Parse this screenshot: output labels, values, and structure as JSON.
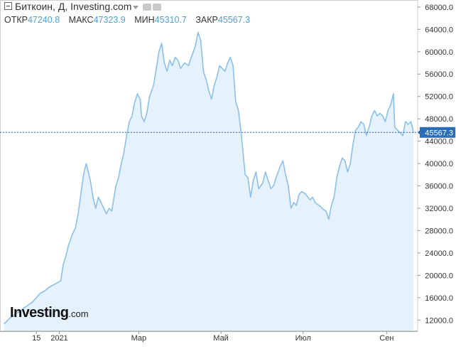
{
  "header": {
    "title": "Биткоин, Д, Investing.com",
    "open_label": "ОТКР",
    "open_value": "47240.8",
    "high_label": "МАКС",
    "high_value": "47323.9",
    "low_label": "МИН",
    "low_value": "45310.7",
    "close_label": "ЗАКР",
    "close_value": "45567.3"
  },
  "logo": {
    "brand": "Investing",
    "suffix": ".com"
  },
  "colors": {
    "line": "#8cc0e8",
    "fill": "#e5f2fb",
    "current_badge": "#2a6db5",
    "current_line": "#2a63b0"
  },
  "chart_data": {
    "type": "area",
    "title": "Биткоин, Д, Investing.com",
    "xlabel": "",
    "ylabel": "",
    "ylim": [
      10000,
      69000
    ],
    "grid": false,
    "y_ticks": [
      "12000.0",
      "16000.0",
      "20000.0",
      "24000.0",
      "28000.0",
      "32000.0",
      "36000.0",
      "40000.0",
      "44000.0",
      "48000.0",
      "52000.0",
      "56000.0",
      "60000.0",
      "64000.0",
      "68000.0"
    ],
    "x_tick_labels": [
      {
        "label": "15",
        "date": "2020-12-15"
      },
      {
        "label": "2021",
        "date": "2021-01-01"
      },
      {
        "label": "Мар",
        "date": "2021-03-01"
      },
      {
        "label": "Май",
        "date": "2021-05-01"
      },
      {
        "label": "Июл",
        "date": "2021-07-01"
      },
      {
        "label": "Сен",
        "date": "2021-09-01"
      }
    ],
    "current_value": 45567.3,
    "current_label": "45567.3",
    "series": [
      {
        "values": [
          [
            "2020-11-21",
            11300
          ],
          [
            "2020-11-25",
            12300
          ],
          [
            "2020-11-28",
            12800
          ],
          [
            "2020-11-30",
            13200
          ],
          [
            "2020-12-03",
            13600
          ],
          [
            "2020-12-06",
            14200
          ],
          [
            "2020-12-09",
            14700
          ],
          [
            "2020-12-12",
            15200
          ],
          [
            "2020-12-15",
            16000
          ],
          [
            "2020-12-18",
            16800
          ],
          [
            "2020-12-21",
            17200
          ],
          [
            "2020-12-24",
            17800
          ],
          [
            "2020-12-27",
            18200
          ],
          [
            "2020-12-30",
            18600
          ],
          [
            "2021-01-02",
            19000
          ],
          [
            "2021-01-04",
            22000
          ],
          [
            "2021-01-06",
            23500
          ],
          [
            "2021-01-08",
            25500
          ],
          [
            "2021-01-11",
            27500
          ],
          [
            "2021-01-13",
            28500
          ],
          [
            "2021-01-15",
            31000
          ],
          [
            "2021-01-17",
            34500
          ],
          [
            "2021-01-19",
            38000
          ],
          [
            "2021-01-21",
            40000
          ],
          [
            "2021-01-24",
            37000
          ],
          [
            "2021-01-26",
            34000
          ],
          [
            "2021-01-28",
            32000
          ],
          [
            "2021-01-30",
            34000
          ],
          [
            "2021-02-02",
            32500
          ],
          [
            "2021-02-05",
            31000
          ],
          [
            "2021-02-07",
            32000
          ],
          [
            "2021-02-09",
            31500
          ],
          [
            "2021-02-10",
            33000
          ],
          [
            "2021-02-12",
            36000
          ],
          [
            "2021-02-14",
            37500
          ],
          [
            "2021-02-16",
            40000
          ],
          [
            "2021-02-18",
            42000
          ],
          [
            "2021-02-20",
            45000
          ],
          [
            "2021-02-22",
            47500
          ],
          [
            "2021-02-24",
            48500
          ],
          [
            "2021-02-26",
            51000
          ],
          [
            "2021-02-28",
            52500
          ],
          [
            "2021-03-02",
            51500
          ],
          [
            "2021-03-03",
            48500
          ],
          [
            "2021-03-05",
            47500
          ],
          [
            "2021-03-07",
            49000
          ],
          [
            "2021-03-09",
            52000
          ],
          [
            "2021-03-12",
            54000
          ],
          [
            "2021-03-14",
            57000
          ],
          [
            "2021-03-16",
            60000
          ],
          [
            "2021-03-18",
            61500
          ],
          [
            "2021-03-20",
            58000
          ],
          [
            "2021-03-22",
            56500
          ],
          [
            "2021-03-24",
            58500
          ],
          [
            "2021-03-26",
            57500
          ],
          [
            "2021-03-28",
            59000
          ],
          [
            "2021-03-30",
            58500
          ],
          [
            "2021-04-01",
            57000
          ],
          [
            "2021-04-04",
            58000
          ],
          [
            "2021-04-07",
            57500
          ],
          [
            "2021-04-09",
            59000
          ],
          [
            "2021-04-12",
            61000
          ],
          [
            "2021-04-14",
            63500
          ],
          [
            "2021-04-16",
            62000
          ],
          [
            "2021-04-18",
            56500
          ],
          [
            "2021-04-20",
            55000
          ],
          [
            "2021-04-22",
            53000
          ],
          [
            "2021-04-24",
            51500
          ],
          [
            "2021-04-26",
            54000
          ],
          [
            "2021-04-28",
            55500
          ],
          [
            "2021-04-30",
            57500
          ],
          [
            "2021-05-02",
            57000
          ],
          [
            "2021-05-04",
            56500
          ],
          [
            "2021-05-06",
            58000
          ],
          [
            "2021-05-08",
            59000
          ],
          [
            "2021-05-10",
            57500
          ],
          [
            "2021-05-12",
            51000
          ],
          [
            "2021-05-14",
            49500
          ],
          [
            "2021-05-16",
            45500
          ],
          [
            "2021-05-19",
            38000
          ],
          [
            "2021-05-21",
            37500
          ],
          [
            "2021-05-23",
            34000
          ],
          [
            "2021-05-25",
            37000
          ],
          [
            "2021-05-27",
            38500
          ],
          [
            "2021-05-29",
            35500
          ],
          [
            "2021-06-01",
            36500
          ],
          [
            "2021-06-03",
            38500
          ],
          [
            "2021-06-05",
            37000
          ],
          [
            "2021-06-07",
            35500
          ],
          [
            "2021-06-09",
            36000
          ],
          [
            "2021-06-11",
            37500
          ],
          [
            "2021-06-14",
            39500
          ],
          [
            "2021-06-16",
            40500
          ],
          [
            "2021-06-18",
            38000
          ],
          [
            "2021-06-20",
            36000
          ],
          [
            "2021-06-22",
            32000
          ],
          [
            "2021-06-24",
            33000
          ],
          [
            "2021-06-26",
            32500
          ],
          [
            "2021-06-28",
            34500
          ],
          [
            "2021-06-30",
            35000
          ],
          [
            "2021-07-03",
            34500
          ],
          [
            "2021-07-06",
            33500
          ],
          [
            "2021-07-08",
            34000
          ],
          [
            "2021-07-10",
            33000
          ],
          [
            "2021-07-13",
            32500
          ],
          [
            "2021-07-16",
            31800
          ],
          [
            "2021-07-18",
            31500
          ],
          [
            "2021-07-20",
            30000
          ],
          [
            "2021-07-22",
            32500
          ],
          [
            "2021-07-24",
            34000
          ],
          [
            "2021-07-26",
            37500
          ],
          [
            "2021-07-28",
            39500
          ],
          [
            "2021-07-30",
            41000
          ],
          [
            "2021-08-01",
            40500
          ],
          [
            "2021-08-03",
            38500
          ],
          [
            "2021-08-05",
            40000
          ],
          [
            "2021-08-07",
            43500
          ],
          [
            "2021-08-09",
            46000
          ],
          [
            "2021-08-11",
            46500
          ],
          [
            "2021-08-13",
            47500
          ],
          [
            "2021-08-15",
            47000
          ],
          [
            "2021-08-17",
            45000
          ],
          [
            "2021-08-19",
            46500
          ],
          [
            "2021-08-21",
            48500
          ],
          [
            "2021-08-23",
            49500
          ],
          [
            "2021-08-25",
            48500
          ],
          [
            "2021-08-27",
            49000
          ],
          [
            "2021-08-29",
            48500
          ],
          [
            "2021-08-31",
            47500
          ],
          [
            "2021-09-02",
            49500
          ],
          [
            "2021-09-04",
            50500
          ],
          [
            "2021-09-06",
            52500
          ],
          [
            "2021-09-07",
            46500
          ],
          [
            "2021-09-09",
            46000
          ],
          [
            "2021-09-11",
            45500
          ],
          [
            "2021-09-13",
            45000
          ],
          [
            "2021-09-15",
            47500
          ],
          [
            "2021-09-17",
            47000
          ],
          [
            "2021-09-19",
            47500
          ],
          [
            "2021-09-21",
            45567.3
          ]
        ]
      }
    ]
  }
}
